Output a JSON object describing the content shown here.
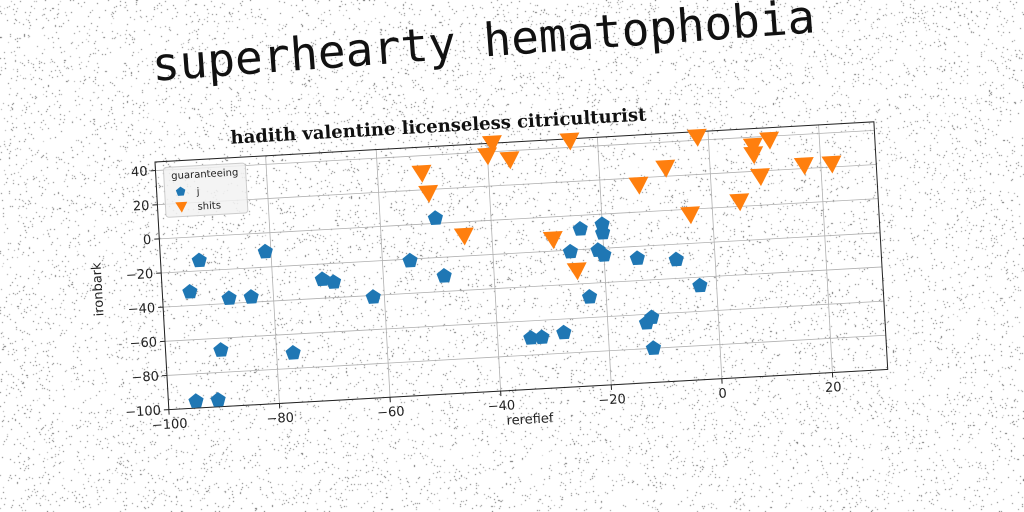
{
  "suptitle": "superhearty hematophobia",
  "colors": {
    "series_1": "#1f77b4",
    "series_2": "#ff7f0e",
    "grid": "#b0b0b0",
    "axis": "#222222"
  },
  "chart_data": {
    "type": "scatter",
    "title": "hadith valentine licenseless citriculturist",
    "xlabel": "rerefief",
    "ylabel": "ironbark",
    "xlim": [
      -100,
      30
    ],
    "ylim": [
      -100,
      45
    ],
    "xticks": [
      -100,
      -80,
      -60,
      -40,
      -20,
      0,
      20
    ],
    "yticks": [
      -100,
      -80,
      -60,
      -40,
      -20,
      0,
      20,
      40
    ],
    "xtick_labels": [
      "−100",
      "−80",
      "−60",
      "−40",
      "−20",
      "0",
      "20"
    ],
    "ytick_labels": [
      "−100",
      "−80",
      "−60",
      "−40",
      "−20",
      "0",
      "20",
      "40"
    ],
    "grid": true,
    "legend": {
      "title": "guaranteeing",
      "placement": "top-left"
    },
    "series": [
      {
        "name": "j",
        "marker": "pentagon",
        "points": [
          [
            -95,
            -96
          ],
          [
            -91,
            -96
          ],
          [
            -95,
            -32
          ],
          [
            -93,
            -14
          ],
          [
            -90,
            -67
          ],
          [
            -88,
            -37
          ],
          [
            -84,
            -37
          ],
          [
            -81,
            -11
          ],
          [
            -77,
            -71
          ],
          [
            -71,
            -29
          ],
          [
            -69,
            -31
          ],
          [
            -62,
            -41
          ],
          [
            -55,
            -21
          ],
          [
            -50,
            3
          ],
          [
            -49,
            -31
          ],
          [
            -34,
            -70
          ],
          [
            -32,
            -70
          ],
          [
            -28,
            -68
          ],
          [
            -26,
            -21
          ],
          [
            -24,
            -8
          ],
          [
            -23,
            -48
          ],
          [
            -21,
            -21
          ],
          [
            -20,
            -24
          ],
          [
            -20,
            -11
          ],
          [
            -20,
            -6
          ],
          [
            -14,
            -27
          ],
          [
            -13,
            -65
          ],
          [
            -12,
            -62
          ],
          [
            -12,
            -80
          ],
          [
            -7,
            -29
          ],
          [
            -3,
            -45
          ]
        ]
      },
      {
        "name": "shits",
        "marker": "triangle-down",
        "points": [
          [
            -52,
            30
          ],
          [
            -51,
            18
          ],
          [
            -45,
            -8
          ],
          [
            -40,
            38
          ],
          [
            -39,
            45
          ],
          [
            -36,
            35
          ],
          [
            -29,
            -13
          ],
          [
            -25,
            -32
          ],
          [
            -25,
            44
          ],
          [
            -13,
            16
          ],
          [
            -8,
            25
          ],
          [
            -4,
            -3
          ],
          [
            -2,
            42
          ],
          [
            5,
            3
          ],
          [
            8,
            35
          ],
          [
            8,
            30
          ],
          [
            9,
            17
          ],
          [
            11,
            38
          ],
          [
            17,
            22
          ],
          [
            22,
            22
          ]
        ]
      }
    ]
  }
}
